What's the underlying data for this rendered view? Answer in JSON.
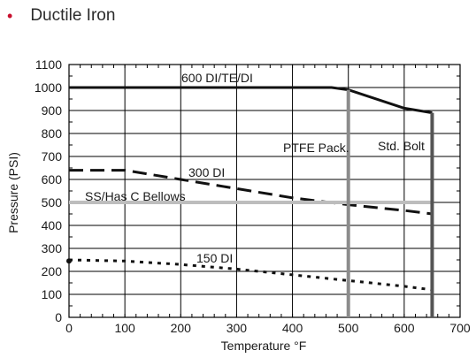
{
  "heading": {
    "bullet": "•",
    "text": "Ductile Iron"
  },
  "colors": {
    "bullet": "#c8102e",
    "ink": "#111111",
    "gray_line": "#8c8c8c",
    "bellows_line": "#bdbdbd",
    "grid": "#000000"
  },
  "chart_data": {
    "type": "line",
    "title": "",
    "xlabel": "Temperature °F",
    "ylabel": "Pressure (PSI)",
    "xlim": [
      0,
      700
    ],
    "ylim": [
      0,
      1100
    ],
    "xticks": [
      0,
      100,
      200,
      300,
      400,
      500,
      600,
      700
    ],
    "yticks": [
      0,
      100,
      200,
      300,
      400,
      500,
      600,
      700,
      800,
      900,
      1000,
      1100
    ],
    "grid": true,
    "minor_ticks_x": 20,
    "series": [
      {
        "name": "600 DI/TE/DI",
        "style": "solid",
        "color": "#111111",
        "x": [
          0,
          470,
          500,
          600,
          650
        ],
        "y": [
          1000,
          1000,
          990,
          910,
          890
        ]
      },
      {
        "name": "300 DI",
        "style": "dashed",
        "color": "#111111",
        "x": [
          0,
          100,
          200,
          300,
          400,
          500,
          600,
          650
        ],
        "y": [
          640,
          640,
          600,
          560,
          520,
          490,
          465,
          450
        ]
      },
      {
        "name": "SS/Has C Bellows",
        "style": "solid",
        "color": "#bdbdbd",
        "x": [
          0,
          650
        ],
        "y": [
          500,
          500
        ]
      },
      {
        "name": "150 DI",
        "style": "dotted",
        "color": "#111111",
        "x": [
          0,
          100,
          200,
          300,
          400,
          500,
          600,
          650
        ],
        "y": [
          250,
          245,
          230,
          210,
          185,
          160,
          135,
          120
        ]
      }
    ],
    "vertical_lines": [
      {
        "name": "PTFE Pack.",
        "x": 500,
        "y_top": 990,
        "color": "#8c8c8c"
      },
      {
        "name": "Std. Bolt",
        "x": 650,
        "y_top": 890,
        "color": "#555555"
      }
    ],
    "markers": [
      {
        "x": 0,
        "y": 245
      }
    ]
  }
}
